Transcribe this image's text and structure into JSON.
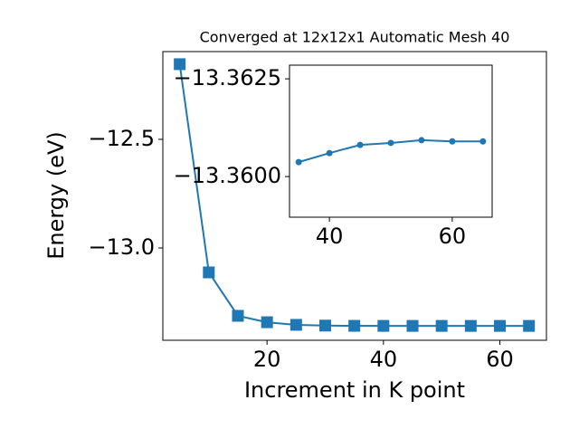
{
  "chart_data": [
    {
      "type": "line",
      "title": "Converged at 12x12x1 Automatic Mesh 40",
      "x_label": "Increment in K point",
      "y_label": "Energy (eV)",
      "x": [
        5,
        10,
        15,
        20,
        25,
        30,
        35,
        40,
        45,
        50,
        55,
        60,
        65
      ],
      "series": [
        {
          "color": "#1f77b4",
          "marker": "square",
          "values": [
            -12.154,
            -13.1125,
            -13.3125,
            -13.342,
            -13.354,
            -13.3575,
            -13.3585,
            -13.3588,
            -13.3589,
            -13.3589,
            -13.3589,
            -13.3589,
            -13.3589
          ]
        }
      ],
      "xlim": [
        2.1,
        68.0
      ],
      "ylim": [
        -13.425,
        -12.096
      ],
      "xticks": [
        20,
        40,
        60
      ],
      "yticks": [
        {
          "value": -12.5,
          "label": "−12.5"
        },
        {
          "value": -13.0,
          "label": "−13.0"
        }
      ]
    },
    {
      "type": "line",
      "x": [
        35,
        40,
        45,
        50,
        55,
        60,
        65
      ],
      "series": [
        {
          "color": "#1f77b4",
          "marker": "circle",
          "values": [
            -13.36037,
            -13.3606,
            -13.36081,
            -13.36086,
            -13.36093,
            -13.3609,
            -13.3609
          ]
        }
      ],
      "xlim": [
        33.5,
        66.5
      ],
      "ylim": [
        -13.35896,
        -13.36285
      ],
      "xticks": [
        40,
        60
      ],
      "yticks": [
        {
          "value": -13.3625,
          "label": "−13.3625"
        },
        {
          "value": -13.36,
          "label": "−13.3600"
        }
      ]
    }
  ]
}
